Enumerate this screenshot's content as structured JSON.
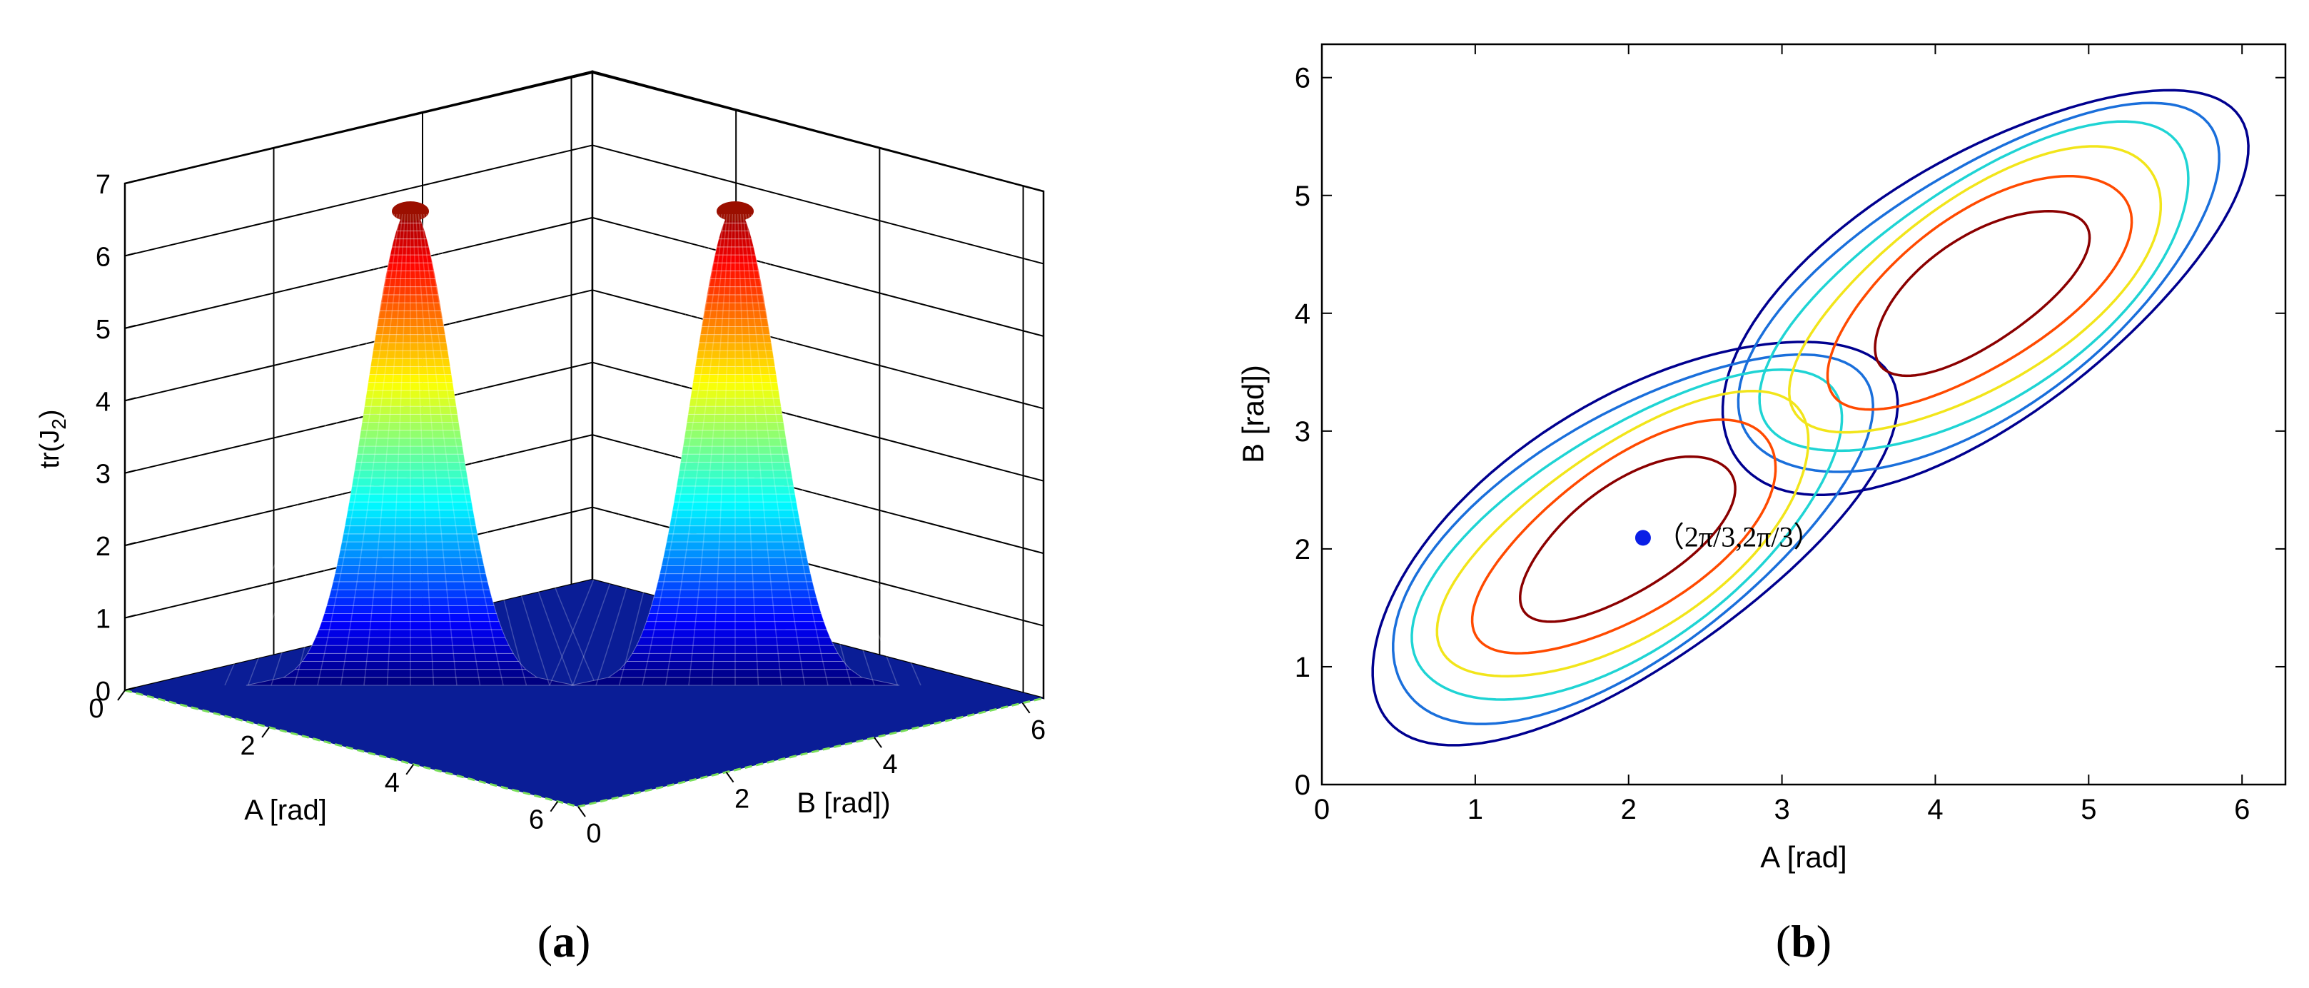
{
  "panels": {
    "a": {
      "caption_open": "(",
      "caption_letter": "a",
      "caption_close": ")"
    },
    "b": {
      "caption_open": "(",
      "caption_letter": "b",
      "caption_close": ")"
    }
  },
  "chart_data": [
    {
      "type": "surface3d",
      "panel": "a",
      "title": "",
      "xlabel": "A [rad]",
      "ylabel": "B [rad])",
      "zlabel_main": "tr(J",
      "zlabel_sub": "2",
      "zlabel_close": ")",
      "xlim": [
        0,
        6.283
      ],
      "ylim": [
        0,
        6.283
      ],
      "zlim": [
        0,
        7
      ],
      "x_ticks": [
        {
          "value": 0,
          "label": "0"
        },
        {
          "value": 2,
          "label": "2"
        },
        {
          "value": 4,
          "label": "4"
        },
        {
          "value": 6,
          "label": "6"
        }
      ],
      "y_ticks": [
        {
          "value": 0,
          "label": "0"
        },
        {
          "value": 2,
          "label": "2"
        },
        {
          "value": 4,
          "label": "4"
        },
        {
          "value": 6,
          "label": "6"
        }
      ],
      "z_ticks": [
        {
          "value": 0,
          "label": "0"
        },
        {
          "value": 1,
          "label": "1"
        },
        {
          "value": 2,
          "label": "2"
        },
        {
          "value": 3,
          "label": "3"
        },
        {
          "value": 4,
          "label": "4"
        },
        {
          "value": 5,
          "label": "5"
        },
        {
          "value": 6,
          "label": "6"
        },
        {
          "value": 7,
          "label": "7"
        }
      ],
      "grid": true,
      "colormap": "jet",
      "peaks": [
        {
          "A": 2.094,
          "B": 2.094,
          "z": 6.7
        },
        {
          "A": 4.189,
          "B": 4.189,
          "z": 6.7
        }
      ]
    },
    {
      "type": "contour",
      "panel": "b",
      "title": "",
      "xlabel": "A [rad]",
      "ylabel": "B [rad])",
      "xlim": [
        0,
        6.283
      ],
      "ylim": [
        0,
        6.283
      ],
      "x_ticks": [
        {
          "value": 0,
          "label": "0"
        },
        {
          "value": 1,
          "label": "1"
        },
        {
          "value": 2,
          "label": "2"
        },
        {
          "value": 3,
          "label": "3"
        },
        {
          "value": 4,
          "label": "4"
        },
        {
          "value": 5,
          "label": "5"
        },
        {
          "value": 6,
          "label": "6"
        }
      ],
      "y_ticks": [
        {
          "value": 0,
          "label": "0"
        },
        {
          "value": 1,
          "label": "1"
        },
        {
          "value": 2,
          "label": "2"
        },
        {
          "value": 3,
          "label": "3"
        },
        {
          "value": 4,
          "label": "4"
        },
        {
          "value": 5,
          "label": "5"
        },
        {
          "value": 6,
          "label": "6"
        }
      ],
      "grid": false,
      "contour_levels": [
        {
          "level": 1,
          "color": "#00008f"
        },
        {
          "level": 2,
          "color": "#1a6fdb"
        },
        {
          "level": 3,
          "color": "#1fd4d4"
        },
        {
          "level": 4,
          "color": "#f2e51a"
        },
        {
          "level": 5,
          "color": "#ff4a00"
        },
        {
          "level": 6,
          "color": "#8b0000"
        }
      ],
      "marker": {
        "A": 2.094,
        "B": 2.094,
        "label": "（2π/3,2π/3）",
        "color": "#0a1ee6"
      }
    }
  ]
}
